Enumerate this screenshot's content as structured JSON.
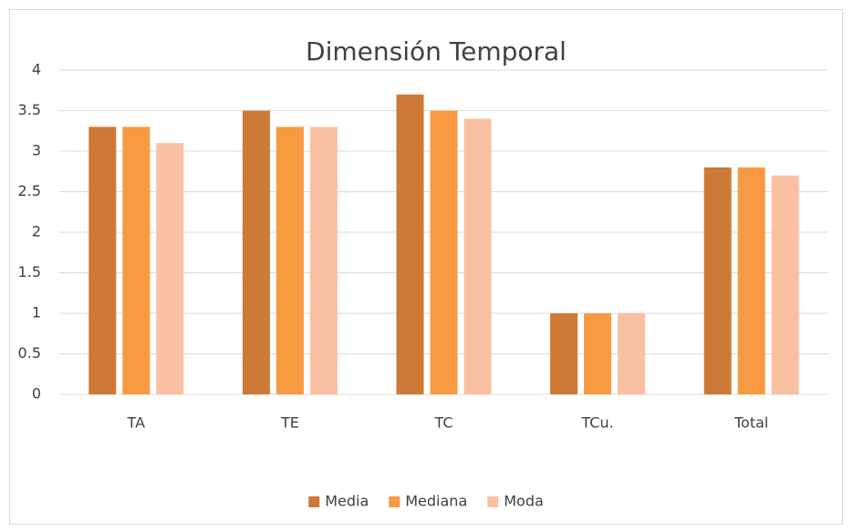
{
  "chart_data": {
    "type": "bar",
    "title": "Dimensión Temporal",
    "categories": [
      "TA",
      "TE",
      "TC",
      "TCu.",
      "Total"
    ],
    "series": [
      {
        "name": "Media",
        "color": "#cc7a35",
        "values": [
          3.3,
          3.5,
          3.7,
          1,
          2.8
        ]
      },
      {
        "name": "Mediana",
        "color": "#f79a42",
        "values": [
          3.3,
          3.3,
          3.5,
          1,
          2.8
        ]
      },
      {
        "name": "Moda",
        "color": "#f9c1a1",
        "values": [
          3.1,
          3.3,
          3.4,
          1,
          2.7
        ]
      }
    ],
    "ylim": [
      0,
      4
    ],
    "yticks": [
      0,
      0.5,
      1,
      1.5,
      2,
      2.5,
      3,
      3.5,
      4
    ],
    "grid": true,
    "legend": "bottom"
  }
}
